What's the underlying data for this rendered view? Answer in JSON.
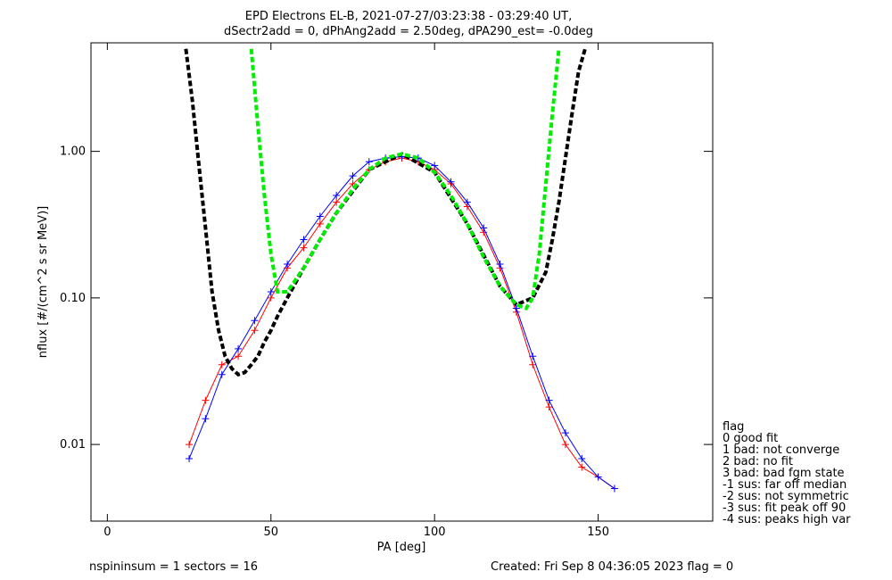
{
  "chart_data": {
    "type": "scatter",
    "title_line1": "EPD Electrons EL-B, 2021-07-27/03:23:38 - 03:29:40 UT,",
    "title_line2": "dSectr2add = 0, dPhAng2add = 2.50deg, dPA290_est=  -0.0deg",
    "xlabel": "PA [deg]",
    "ylabel": "nflux [#/(cm^2 s sr MeV)]",
    "xlim": [
      -5,
      185
    ],
    "ylim": [
      0.003,
      5.5
    ],
    "y_scale": "log",
    "x_ticks": [
      0,
      50,
      100,
      150
    ],
    "x_tick_labels": [
      "0",
      "50",
      "100",
      "150"
    ],
    "y_ticks": [
      0.01,
      0.1,
      1.0
    ],
    "y_tick_labels": [
      "0.01",
      "0.10",
      "1.00"
    ],
    "legend_title": "flag",
    "legend": [
      " 0 good fit",
      " 1 bad: not converge",
      " 2 bad: no fit",
      " 3 bad: bad fgm state",
      "-1 sus: far off median",
      "-2 sus: not symmetric",
      "-3 sus: fit peak off 90",
      "-4 sus: peaks high var"
    ],
    "footer_left": "nspininsum =  1  sectors = 16",
    "footer_right": "Created: Fri Sep  8 04:36:05 2023   flag = 0",
    "colors": {
      "series_a": "#ff0000",
      "series_b": "#0000ff",
      "fit_green": "#00ee00",
      "fit_black": "#000000"
    },
    "series": [
      {
        "marker": "+",
        "color": "#ff0000",
        "x": [
          25,
          30,
          35,
          40,
          45,
          50,
          55,
          60,
          65,
          70,
          75,
          80,
          85,
          90,
          95,
          100,
          105,
          110,
          115,
          120,
          125,
          130,
          135,
          140,
          145,
          150,
          155
        ],
        "y": [
          0.01,
          0.02,
          0.035,
          0.04,
          0.06,
          0.1,
          0.16,
          0.22,
          0.32,
          0.45,
          0.6,
          0.75,
          0.85,
          0.9,
          0.85,
          0.75,
          0.6,
          0.42,
          0.28,
          0.16,
          0.08,
          0.035,
          0.018,
          0.01,
          0.007,
          0.006,
          0.005
        ]
      },
      {
        "marker": "+",
        "color": "#0000ff",
        "x": [
          25,
          30,
          35,
          40,
          45,
          50,
          55,
          60,
          65,
          70,
          75,
          80,
          85,
          90,
          95,
          100,
          105,
          110,
          115,
          120,
          125,
          130,
          135,
          140,
          145,
          150,
          155
        ],
        "y": [
          0.008,
          0.015,
          0.03,
          0.045,
          0.07,
          0.11,
          0.17,
          0.25,
          0.36,
          0.5,
          0.68,
          0.85,
          0.9,
          0.92,
          0.9,
          0.8,
          0.62,
          0.45,
          0.3,
          0.17,
          0.085,
          0.04,
          0.02,
          0.012,
          0.008,
          0.006,
          0.005
        ]
      }
    ],
    "fit_green": {
      "x": [
        44,
        46,
        48,
        50,
        52,
        55,
        60,
        65,
        70,
        75,
        80,
        85,
        90,
        95,
        100,
        105,
        110,
        115,
        120,
        125,
        128,
        130,
        132,
        134,
        136,
        138
      ],
      "y": [
        5,
        1.5,
        0.5,
        0.2,
        0.11,
        0.11,
        0.16,
        0.25,
        0.38,
        0.55,
        0.75,
        0.9,
        0.96,
        0.9,
        0.72,
        0.5,
        0.32,
        0.19,
        0.12,
        0.09,
        0.085,
        0.1,
        0.2,
        0.6,
        1.8,
        5
      ]
    },
    "fit_black": {
      "x": [
        24,
        26,
        28,
        30,
        32,
        34,
        36,
        38,
        40,
        42,
        44,
        46,
        48,
        50,
        52,
        55,
        60,
        65,
        70,
        80,
        90,
        100,
        110,
        120,
        125,
        130,
        134,
        136,
        138,
        140,
        142,
        144,
        146
      ],
      "y": [
        5,
        2.2,
        0.8,
        0.3,
        0.11,
        0.06,
        0.04,
        0.033,
        0.03,
        0.031,
        0.035,
        0.04,
        0.05,
        0.06,
        0.075,
        0.1,
        0.16,
        0.25,
        0.38,
        0.75,
        0.96,
        0.72,
        0.32,
        0.12,
        0.09,
        0.1,
        0.15,
        0.25,
        0.45,
        0.9,
        1.8,
        3.5,
        5
      ]
    }
  }
}
